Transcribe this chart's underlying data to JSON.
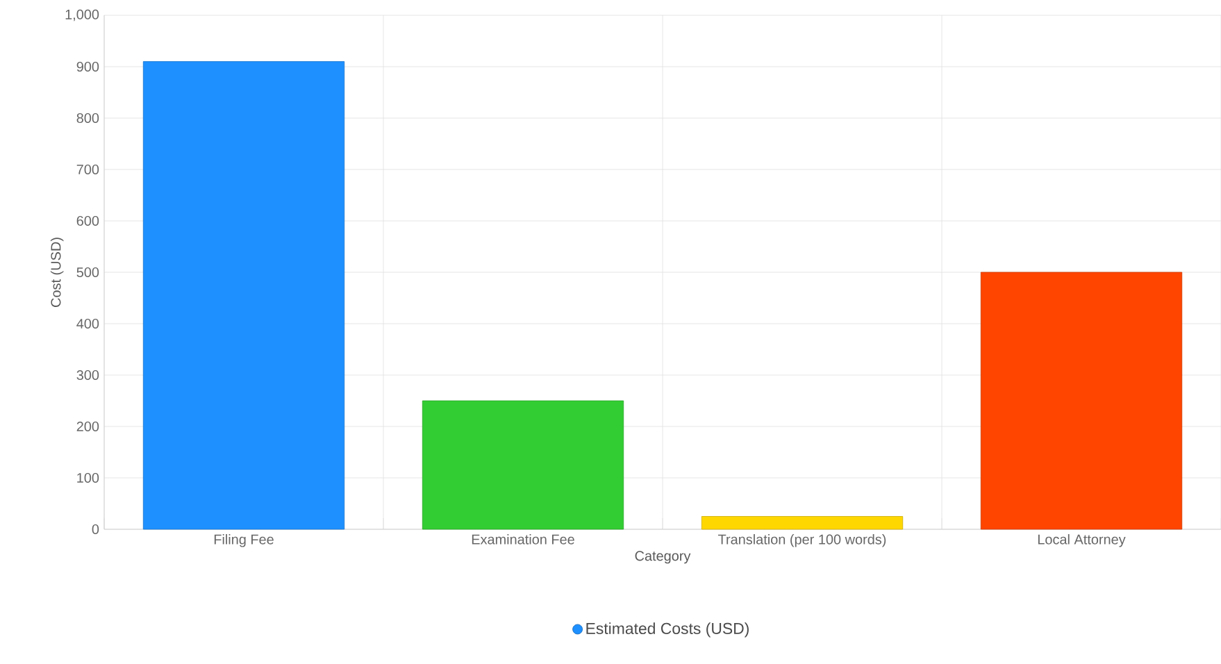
{
  "chart_data": {
    "type": "bar",
    "xlabel": "Category",
    "ylabel": "Cost (USD)",
    "categories": [
      "Filing Fee",
      "Examination Fee",
      "Translation (per 100 words)",
      "Local Attorney"
    ],
    "series": [
      {
        "name": "Estimated Costs (USD)",
        "color": "#1e90ff",
        "colors": [
          "#1e90ff",
          "#32cd32",
          "#ffd700",
          "#ff4500"
        ],
        "values": [
          910,
          250,
          25,
          500
        ]
      }
    ],
    "ylim": [
      0,
      1000
    ],
    "yticks": [
      0,
      100,
      200,
      300,
      400,
      500,
      600,
      700,
      800,
      900,
      {
        "value": 1000,
        "label": "1,000"
      }
    ],
    "grid": true,
    "legend": "bottom"
  }
}
